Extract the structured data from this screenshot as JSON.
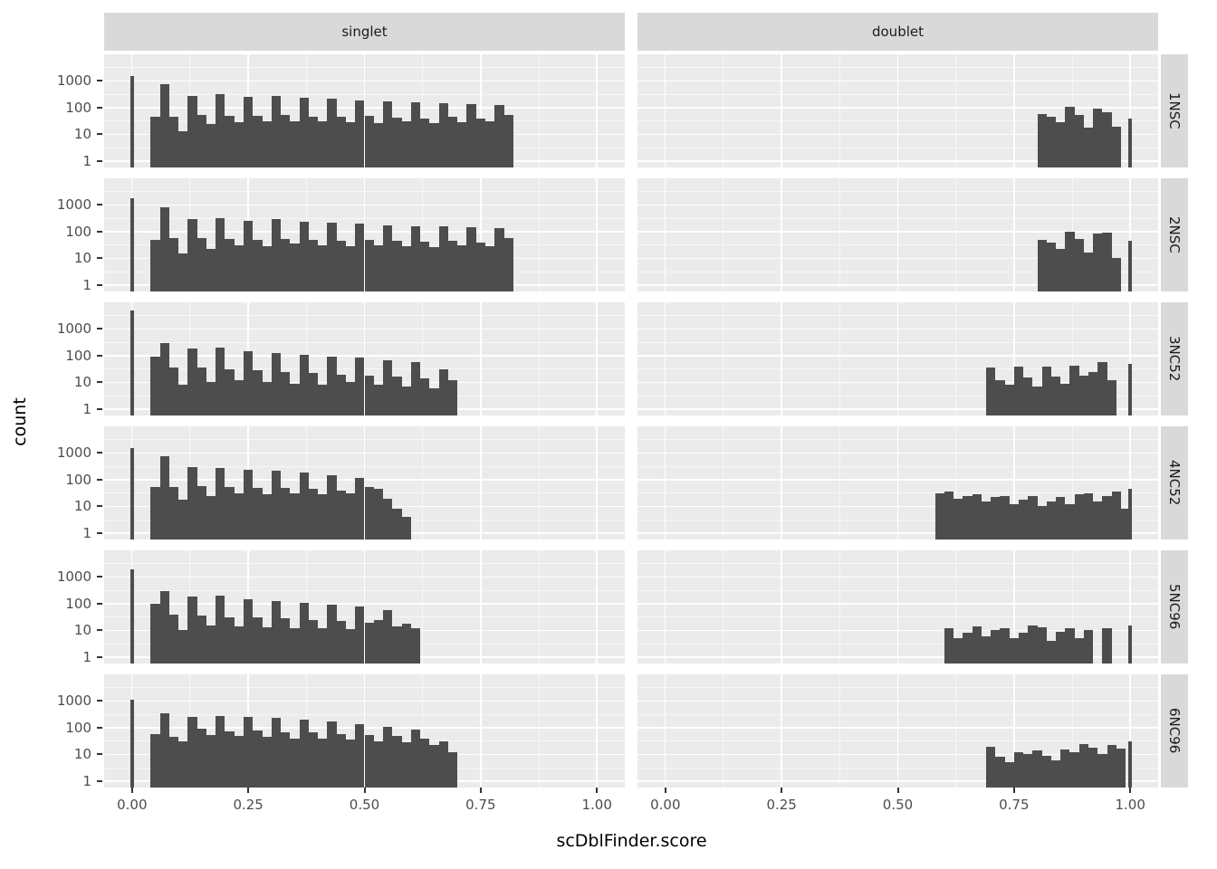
{
  "chart_data": {
    "type": "bar",
    "subtype": "faceted-log-histogram",
    "title": "",
    "xlabel": "scDblFinder.score",
    "ylabel": "count",
    "x_domain": [
      -0.06,
      1.06
    ],
    "x_major_ticks": [
      0.0,
      0.25,
      0.5,
      0.75,
      1.0
    ],
    "x_tick_labels": [
      "0.00",
      "0.25",
      "0.50",
      "0.75",
      "1.00"
    ],
    "x_minor_ticks": [
      0.125,
      0.375,
      0.625,
      0.875
    ],
    "y_scale": "log10",
    "y_log_domain": [
      -0.24,
      4.0
    ],
    "y_major_ticks": [
      1000,
      100,
      10,
      1
    ],
    "y_tick_labels": [
      "1000",
      "100",
      "10",
      "1"
    ],
    "y_minor_ticks": [
      3.162,
      31.62,
      316.2,
      3162
    ],
    "grid": true,
    "bin_width": 0.02,
    "bar_color": "#4d4d4d",
    "panel_bg": "#ebebeb",
    "strip_bg": "#d9d9d9",
    "facet_cols": [
      "singlet",
      "doublet"
    ],
    "facet_rows": [
      "1NSC",
      "2NSC",
      "3NC52",
      "4NC52",
      "5NC96",
      "6NC96"
    ],
    "panels": [
      {
        "row": "1NSC",
        "col": "singlet",
        "run": {
          "x0": 0.05,
          "step": 0.02,
          "counts": [
            45,
            750,
            45,
            13,
            280,
            55,
            25,
            330,
            50,
            28,
            250,
            48,
            30,
            280,
            52,
            32,
            230,
            46,
            30,
            210,
            44,
            28,
            190,
            48,
            27,
            170,
            42,
            30,
            160,
            40,
            26,
            150,
            44,
            28,
            140,
            38,
            30,
            130,
            55
          ]
        },
        "spikes": [
          [
            0.0,
            1500,
            0.008
          ]
        ]
      },
      {
        "row": "1NSC",
        "col": "doublet",
        "run": {
          "x0": 0.81,
          "step": 0.02,
          "counts": [
            60,
            45,
            28,
            110,
            55,
            18,
            90,
            70,
            20
          ]
        },
        "spikes": [
          [
            1.0,
            40,
            0.008
          ]
        ]
      },
      {
        "row": "2NSC",
        "col": "singlet",
        "run": {
          "x0": 0.05,
          "step": 0.02,
          "counts": [
            50,
            800,
            60,
            15,
            300,
            58,
            22,
            320,
            55,
            30,
            260,
            50,
            28,
            290,
            55,
            35,
            240,
            48,
            30,
            215,
            45,
            28,
            195,
            50,
            30,
            175,
            44,
            28,
            165,
            42,
            26,
            155,
            45,
            30,
            145,
            40,
            28,
            135,
            60
          ]
        },
        "spikes": [
          [
            0.0,
            1800,
            0.008
          ]
        ]
      },
      {
        "row": "2NSC",
        "col": "doublet",
        "run": {
          "x0": 0.81,
          "step": 0.02,
          "counts": [
            50,
            38,
            22,
            100,
            55,
            16,
            85,
            90,
            10
          ]
        },
        "spikes": [
          [
            1.0,
            45,
            0.008
          ]
        ]
      },
      {
        "row": "3NC52",
        "col": "singlet",
        "run": {
          "x0": 0.05,
          "step": 0.02,
          "counts": [
            90,
            300,
            35,
            8,
            180,
            35,
            10,
            200,
            30,
            12,
            150,
            28,
            10,
            130,
            25,
            9,
            110,
            22,
            8,
            95,
            20,
            10,
            85,
            18,
            8,
            70,
            16,
            7,
            60,
            14,
            6,
            30,
            12
          ]
        },
        "spikes": [
          [
            0.0,
            5000,
            0.008
          ]
        ]
      },
      {
        "row": "3NC52",
        "col": "doublet",
        "run": {
          "x0": 0.7,
          "step": 0.02,
          "counts": [
            35,
            12,
            8,
            40,
            15,
            7,
            38,
            16,
            9,
            42,
            18,
            25
          ]
        },
        "spikes": [
          [
            0.94,
            60,
            0.02
          ],
          [
            0.96,
            12,
            0.02
          ],
          [
            1.0,
            50,
            0.008
          ]
        ]
      },
      {
        "row": "4NC52",
        "col": "singlet",
        "run": {
          "x0": 0.05,
          "step": 0.02,
          "counts": [
            55,
            750,
            55,
            18,
            300,
            60,
            25,
            280,
            55,
            30,
            240,
            50,
            28,
            210,
            48,
            30,
            180,
            45,
            28,
            150,
            40,
            30,
            120,
            55,
            45,
            20,
            8,
            4
          ]
        },
        "spikes": [
          [
            0.0,
            1500,
            0.008
          ]
        ]
      },
      {
        "row": "4NC52",
        "col": "doublet",
        "run": {
          "x0": 0.59,
          "step": 0.02,
          "counts": [
            30,
            35,
            20,
            25,
            28,
            15,
            22,
            25,
            12,
            18,
            25,
            10,
            15,
            22,
            12,
            28,
            30,
            15,
            25,
            35,
            8
          ]
        },
        "spikes": [
          [
            1.0,
            47,
            0.008
          ]
        ]
      },
      {
        "row": "5NC96",
        "col": "singlet",
        "run": {
          "x0": 0.05,
          "step": 0.02,
          "counts": [
            100,
            300,
            40,
            10,
            180,
            35,
            15,
            200,
            32,
            14,
            150,
            30,
            13,
            130,
            28,
            12,
            110,
            25,
            12,
            95,
            22,
            11,
            80,
            20,
            25,
            60,
            14,
            18,
            12
          ]
        },
        "spikes": [
          [
            0.0,
            2000,
            0.008
          ]
        ]
      },
      {
        "row": "5NC96",
        "col": "doublet",
        "run": {
          "x0": 0.61,
          "step": 0.02,
          "counts": [
            12,
            5,
            8,
            14,
            6,
            10,
            12,
            5,
            8,
            15,
            13,
            4,
            9,
            12,
            5,
            10
          ]
        },
        "spikes": [
          [
            0.95,
            12,
            0.02
          ],
          [
            1.0,
            15,
            0.008
          ]
        ]
      },
      {
        "row": "6NC96",
        "col": "singlet",
        "run": {
          "x0": 0.05,
          "step": 0.02,
          "counts": [
            60,
            350,
            45,
            30,
            250,
            90,
            55,
            280,
            75,
            50,
            260,
            80,
            45,
            230,
            70,
            40,
            200,
            65,
            38,
            170,
            60,
            35,
            140,
            55,
            30,
            110,
            48,
            28,
            85,
            40,
            22,
            30,
            12
          ]
        },
        "spikes": [
          [
            0.0,
            1100,
            0.008
          ]
        ]
      },
      {
        "row": "6NC96",
        "col": "doublet",
        "run": {
          "x0": 0.7,
          "step": 0.02,
          "counts": [
            20,
            8,
            5,
            12,
            10,
            14,
            9,
            6,
            15,
            12,
            25,
            18,
            10,
            22,
            16
          ]
        },
        "spikes": [
          [
            1.0,
            30,
            0.008
          ]
        ]
      }
    ]
  }
}
